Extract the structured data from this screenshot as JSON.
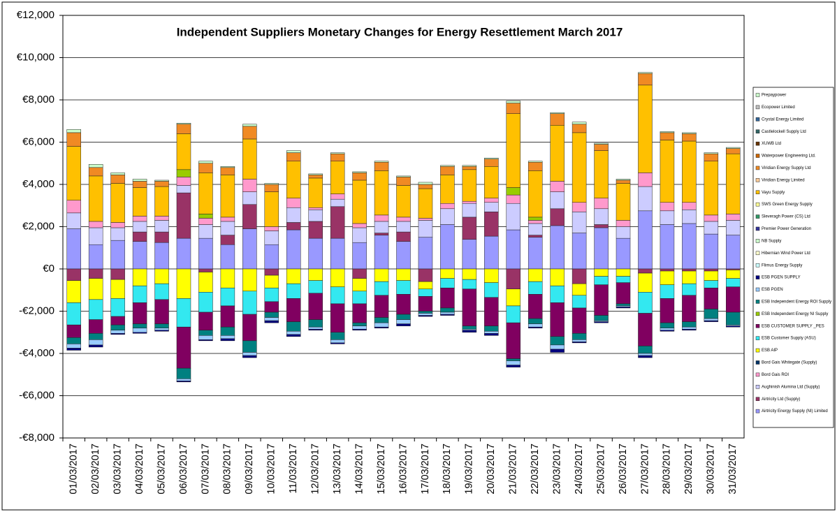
{
  "chart_data": {
    "type": "stacked-bar",
    "title": "Independent Suppliers Monetary Changes for Energy Resettlement March 2017",
    "categories": [
      "01/03/2017",
      "02/03/2017",
      "03/03/2017",
      "04/03/2017",
      "05/03/2017",
      "06/03/2017",
      "07/03/2017",
      "08/03/2017",
      "09/03/2017",
      "10/03/2017",
      "11/03/2017",
      "12/03/2017",
      "13/03/2017",
      "14/03/2017",
      "15/03/2017",
      "16/03/2017",
      "17/03/2017",
      "18/03/2017",
      "19/03/2017",
      "20/03/2017",
      "21/03/2017",
      "22/03/2017",
      "23/03/2017",
      "24/03/2017",
      "25/03/2017",
      "26/03/2017",
      "27/03/2017",
      "28/03/2017",
      "29/03/2017",
      "30/03/2017",
      "31/03/2017"
    ],
    "ylim": [
      -8000,
      12000
    ],
    "yticks": [
      {
        "value": -8000,
        "label": "-€8,000"
      },
      {
        "value": -6000,
        "label": "-€6,000"
      },
      {
        "value": -4000,
        "label": "-€4,000"
      },
      {
        "value": -2000,
        "label": "-€2,000"
      },
      {
        "value": 0,
        "label": "€0"
      },
      {
        "value": 2000,
        "label": "€2,000"
      },
      {
        "value": 4000,
        "label": "€4,000"
      },
      {
        "value": 6000,
        "label": "€6,000"
      },
      {
        "value": 8000,
        "label": "€8,000"
      },
      {
        "value": 10000,
        "label": "€10,000"
      },
      {
        "value": 12000,
        "label": "€12,000"
      }
    ],
    "grid": true,
    "series": [
      {
        "name": "Airtricity Energy Supply (NI) Limited",
        "color": "#9999FF",
        "values": [
          1900,
          1150,
          1350,
          1300,
          1250,
          1450,
          1450,
          1150,
          1900,
          1150,
          1850,
          1450,
          1450,
          1250,
          1600,
          1300,
          1500,
          2100,
          1400,
          1550,
          1850,
          1500,
          2050,
          1700,
          1950,
          1450,
          2750,
          2100,
          2150,
          1650,
          1600
        ]
      },
      {
        "name": "Airtricity Ltd (Supply)",
        "color": "#993366",
        "values": [
          -550,
          -450,
          -500,
          450,
          500,
          2150,
          -150,
          450,
          1150,
          -300,
          350,
          800,
          1500,
          -450,
          100,
          450,
          -600,
          0,
          1050,
          1150,
          -950,
          100,
          800,
          -700,
          150,
          0,
          -200,
          -100,
          -100,
          -100,
          -50
        ]
      },
      {
        "name": "Aughinish Alumina Ltd (Supply)",
        "color": "#CCCCFF",
        "values": [
          750,
          800,
          600,
          500,
          550,
          350,
          650,
          650,
          600,
          650,
          700,
          550,
          350,
          700,
          550,
          500,
          800,
          750,
          650,
          450,
          1250,
          550,
          800,
          1000,
          750,
          550,
          1150,
          650,
          650,
          600,
          700
        ]
      },
      {
        "name": "Bord Gais ROI",
        "color": "#FF99CC",
        "values": [
          600,
          300,
          250,
          250,
          200,
          400,
          300,
          200,
          600,
          200,
          450,
          100,
          250,
          200,
          300,
          200,
          100,
          250,
          100,
          200,
          400,
          150,
          500,
          450,
          500,
          300,
          650,
          400,
          350,
          300,
          300
        ]
      },
      {
        "name": "Bord Gais Whitegate (Supply)",
        "color": "#003366",
        "values": [
          0,
          0,
          0,
          0,
          0,
          0,
          0,
          0,
          0,
          0,
          0,
          0,
          0,
          0,
          0,
          0,
          0,
          0,
          0,
          0,
          0,
          0,
          0,
          0,
          0,
          0,
          0,
          0,
          0,
          0,
          0
        ]
      },
      {
        "name": "ESB AIP",
        "color": "#FFFF00",
        "values": [
          -1050,
          -1000,
          -900,
          -800,
          -700,
          -1400,
          -950,
          -900,
          -1050,
          -600,
          -700,
          -550,
          -850,
          -600,
          -600,
          -550,
          -350,
          -450,
          -500,
          -650,
          -800,
          -600,
          -800,
          -550,
          -350,
          -350,
          -900,
          -650,
          -600,
          -450,
          -400
        ]
      },
      {
        "name": "ESB Customer Supply (ASU)",
        "color": "#33E8F0",
        "values": [
          -1050,
          -950,
          -850,
          -800,
          -750,
          -1350,
          -950,
          -850,
          -1100,
          -650,
          -700,
          -600,
          -800,
          -600,
          -650,
          -650,
          -350,
          -450,
          -450,
          -700,
          -800,
          -600,
          -800,
          -600,
          -400,
          -300,
          -1000,
          -650,
          -550,
          -350,
          -400
        ]
      },
      {
        "name": "ESB CUSTOMER SUPPLY _PES",
        "color": "#800060",
        "values": [
          -600,
          -650,
          -400,
          -1000,
          -1150,
          -1950,
          -850,
          -1000,
          -1250,
          -500,
          -1100,
          -1250,
          -1350,
          -900,
          -1050,
          -950,
          -700,
          -950,
          -1750,
          -1350,
          -1700,
          -1150,
          -1600,
          -1200,
          -1450,
          -1000,
          -1550,
          -1150,
          -1250,
          -1000,
          -1200
        ]
      },
      {
        "name": "ESB Independent Energy NI Supply",
        "color": "#99CC00",
        "values": [
          0,
          0,
          0,
          0,
          0,
          350,
          200,
          0,
          0,
          0,
          0,
          0,
          0,
          0,
          0,
          0,
          0,
          0,
          0,
          0,
          350,
          150,
          0,
          0,
          0,
          0,
          0,
          0,
          0,
          0,
          0
        ]
      },
      {
        "name": "ESB Independent Energy ROI Supply",
        "color": "#008080",
        "values": [
          -300,
          -300,
          -250,
          -200,
          -200,
          -500,
          -250,
          -400,
          -550,
          -250,
          -450,
          -350,
          -350,
          -150,
          -250,
          -250,
          -100,
          -200,
          -150,
          -250,
          -100,
          -250,
          -400,
          -300,
          -250,
          -100,
          -350,
          -250,
          -250,
          -450,
          -600
        ]
      },
      {
        "name": "ESB PGEN",
        "color": "#99CCFF",
        "values": [
          -200,
          -250,
          -150,
          -200,
          -100,
          -100,
          -200,
          -150,
          -150,
          -150,
          -150,
          -100,
          -150,
          -150,
          -200,
          -200,
          -100,
          -100,
          -50,
          -100,
          -200,
          -150,
          -200,
          -100,
          -50,
          -50,
          -100,
          -100,
          -100,
          -100,
          -50
        ]
      },
      {
        "name": "ESB PGEN SUPPLY",
        "color": "#000080",
        "values": [
          -100,
          -100,
          -50,
          -50,
          -50,
          -50,
          -50,
          -100,
          -100,
          -100,
          -100,
          -50,
          -50,
          -50,
          -50,
          -100,
          -50,
          -50,
          -100,
          -100,
          -100,
          -50,
          -150,
          -50,
          -50,
          -50,
          -100,
          -50,
          -50,
          -50,
          -50
        ]
      },
      {
        "name": "Flimus Energy Supply",
        "color": "#CCFFFF",
        "values": [
          0,
          0,
          0,
          0,
          0,
          0,
          0,
          0,
          0,
          0,
          0,
          0,
          0,
          0,
          0,
          0,
          0,
          0,
          0,
          0,
          0,
          0,
          0,
          0,
          0,
          0,
          0,
          0,
          0,
          0,
          0
        ]
      },
      {
        "name": "Hibernian Wind Power Ltd",
        "color": "#FFFFCC",
        "values": [
          0,
          0,
          0,
          0,
          0,
          0,
          0,
          0,
          0,
          0,
          0,
          0,
          0,
          0,
          0,
          0,
          0,
          0,
          0,
          0,
          0,
          0,
          0,
          0,
          0,
          0,
          0,
          0,
          0,
          0,
          0
        ]
      },
      {
        "name": "NB Supply",
        "color": "#CCFFCC",
        "values": [
          0,
          0,
          0,
          0,
          0,
          0,
          0,
          0,
          0,
          0,
          0,
          0,
          0,
          0,
          0,
          0,
          0,
          0,
          0,
          0,
          0,
          0,
          0,
          0,
          0,
          0,
          0,
          0,
          0,
          0,
          0
        ]
      },
      {
        "name": "Premier Power Generation",
        "color": "#333399",
        "values": [
          0,
          0,
          0,
          0,
          0,
          0,
          0,
          0,
          0,
          0,
          0,
          0,
          0,
          0,
          0,
          0,
          0,
          0,
          0,
          0,
          0,
          0,
          0,
          0,
          0,
          0,
          0,
          0,
          0,
          0,
          0
        ]
      },
      {
        "name": "Sleveragh Power (CS) Ltd",
        "color": "#339966",
        "values": [
          0,
          0,
          0,
          0,
          0,
          0,
          0,
          0,
          0,
          0,
          0,
          0,
          0,
          0,
          0,
          0,
          0,
          0,
          0,
          0,
          0,
          0,
          0,
          0,
          0,
          0,
          0,
          0,
          0,
          0,
          0
        ]
      },
      {
        "name": "SWS Green Energy Supply",
        "color": "#FFFF99",
        "values": [
          0,
          0,
          0,
          0,
          0,
          0,
          0,
          0,
          0,
          0,
          0,
          0,
          0,
          0,
          0,
          0,
          0,
          0,
          0,
          0,
          0,
          0,
          0,
          0,
          0,
          0,
          0,
          0,
          0,
          0,
          0
        ]
      },
      {
        "name": "Vayu Supply",
        "color": "#FFC000",
        "values": [
          2550,
          2150,
          1850,
          1350,
          1400,
          1700,
          1950,
          2000,
          1900,
          1650,
          1750,
          1400,
          1550,
          2050,
          2100,
          1500,
          1400,
          1350,
          1500,
          1500,
          3500,
          2200,
          2650,
          3300,
          2250,
          1750,
          4150,
          2950,
          2900,
          2550,
          2850
        ]
      },
      {
        "name": "Viridian Energy Limited",
        "color": "#FFCC99",
        "values": [
          0,
          0,
          0,
          0,
          0,
          0,
          0,
          0,
          0,
          0,
          0,
          0,
          0,
          0,
          0,
          0,
          0,
          0,
          0,
          0,
          0,
          0,
          0,
          0,
          0,
          0,
          0,
          0,
          0,
          0,
          0
        ]
      },
      {
        "name": "Viridian Energy Supply Ltd",
        "color": "#F08A24",
        "values": [
          650,
          400,
          400,
          300,
          250,
          450,
          450,
          350,
          600,
          350,
          400,
          150,
          350,
          350,
          400,
          400,
          200,
          400,
          150,
          350,
          500,
          400,
          550,
          400,
          300,
          150,
          550,
          350,
          350,
          350,
          250
        ]
      },
      {
        "name": "Waterpower Engineering Ltd.",
        "color": "#CC6600",
        "values": [
          0,
          0,
          0,
          0,
          0,
          0,
          0,
          0,
          0,
          0,
          0,
          0,
          0,
          0,
          0,
          0,
          0,
          0,
          0,
          0,
          0,
          0,
          0,
          0,
          0,
          0,
          0,
          0,
          0,
          0,
          0
        ]
      },
      {
        "name": "XUWB Ltd",
        "color": "#663300",
        "values": [
          0,
          0,
          0,
          0,
          0,
          0,
          0,
          0,
          0,
          0,
          0,
          0,
          0,
          0,
          0,
          0,
          0,
          0,
          0,
          0,
          0,
          0,
          0,
          0,
          0,
          0,
          0,
          0,
          0,
          0,
          0
        ]
      },
      {
        "name": "Castlelockell Supply Ltd",
        "color": "#336666",
        "values": [
          0,
          0,
          0,
          0,
          0,
          0,
          0,
          0,
          0,
          0,
          0,
          0,
          0,
          0,
          0,
          0,
          0,
          0,
          0,
          0,
          0,
          0,
          0,
          0,
          0,
          0,
          0,
          0,
          0,
          0,
          0
        ]
      },
      {
        "name": "Crystal Energy Limited",
        "color": "#336699",
        "values": [
          0,
          0,
          0,
          0,
          0,
          0,
          0,
          0,
          0,
          0,
          0,
          0,
          0,
          0,
          0,
          0,
          0,
          0,
          0,
          0,
          0,
          0,
          0,
          0,
          0,
          0,
          0,
          0,
          0,
          0,
          0
        ]
      },
      {
        "name": "Ecopower Limited",
        "color": "#C0C0C0",
        "values": [
          0,
          0,
          0,
          0,
          0,
          0,
          0,
          0,
          0,
          0,
          0,
          0,
          0,
          0,
          0,
          0,
          0,
          0,
          0,
          0,
          0,
          0,
          0,
          0,
          0,
          0,
          0,
          0,
          0,
          0,
          0
        ]
      },
      {
        "name": "Prepaypower",
        "color": "#CCFFCC",
        "values": [
          150,
          150,
          100,
          100,
          50,
          50,
          100,
          50,
          100,
          50,
          100,
          50,
          50,
          50,
          50,
          50,
          100,
          50,
          50,
          50,
          100,
          50,
          50,
          100,
          50,
          50,
          50,
          50,
          50,
          50,
          50
        ]
      }
    ]
  }
}
